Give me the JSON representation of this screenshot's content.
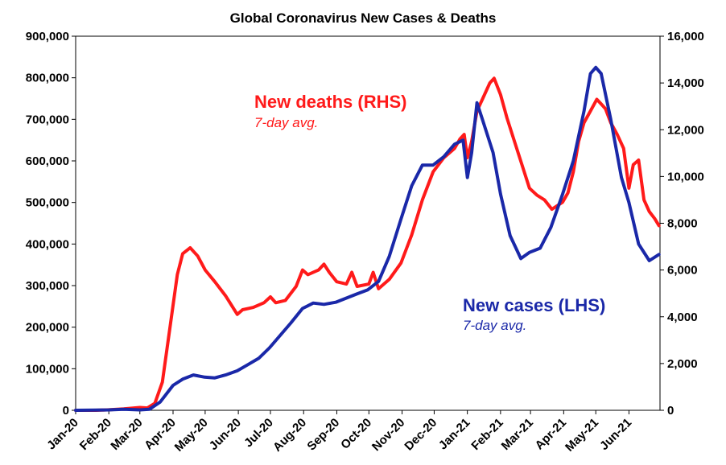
{
  "chart_data": {
    "type": "line",
    "title": "Global Coronavirus New Cases & Deaths",
    "xlabel": "",
    "ylabel": "",
    "x_ticks": [
      "Jan-20",
      "Feb-20",
      "Mar-20",
      "Apr-20",
      "May-20",
      "Jun-20",
      "Jul-20",
      "Aug-20",
      "Sep-20",
      "Oct-20",
      "Nov-20",
      "Dec-20",
      "Jan-21",
      "Feb-21",
      "Mar-21",
      "Apr-21",
      "May-21",
      "Jun-21"
    ],
    "y_left": {
      "min": 0,
      "max": 900000,
      "ticks": [
        "0",
        "100,000",
        "200,000",
        "300,000",
        "400,000",
        "500,000",
        "600,000",
        "700,000",
        "800,000",
        "900,000"
      ]
    },
    "y_right": {
      "min": 0,
      "max": 16000,
      "ticks": [
        "0",
        "2,000",
        "4,000",
        "6,000",
        "8,000",
        "10,000",
        "12,000",
        "14,000",
        "16,000"
      ]
    },
    "grid": false,
    "series": [
      {
        "name": "New deaths (RHS)",
        "subtitle": "7-day avg.",
        "axis": "right",
        "color": "#ff1a1a",
        "points": [
          [
            "2020-01-01",
            0
          ],
          [
            "2020-01-20",
            0
          ],
          [
            "2020-02-01",
            20
          ],
          [
            "2020-02-15",
            60
          ],
          [
            "2020-03-01",
            120
          ],
          [
            "2020-03-08",
            100
          ],
          [
            "2020-03-15",
            300
          ],
          [
            "2020-03-22",
            1200
          ],
          [
            "2020-03-29",
            3500
          ],
          [
            "2020-04-05",
            5800
          ],
          [
            "2020-04-10",
            6700
          ],
          [
            "2020-04-17",
            6950
          ],
          [
            "2020-04-24",
            6600
          ],
          [
            "2020-05-01",
            6000
          ],
          [
            "2020-05-10",
            5500
          ],
          [
            "2020-05-20",
            4900
          ],
          [
            "2020-05-31",
            4100
          ],
          [
            "2020-06-05",
            4300
          ],
          [
            "2020-06-15",
            4400
          ],
          [
            "2020-06-25",
            4600
          ],
          [
            "2020-07-01",
            4850
          ],
          [
            "2020-07-06",
            4600
          ],
          [
            "2020-07-15",
            4700
          ],
          [
            "2020-07-25",
            5300
          ],
          [
            "2020-07-31",
            6000
          ],
          [
            "2020-08-05",
            5800
          ],
          [
            "2020-08-15",
            6000
          ],
          [
            "2020-08-20",
            6250
          ],
          [
            "2020-08-25",
            5900
          ],
          [
            "2020-09-01",
            5500
          ],
          [
            "2020-09-10",
            5400
          ],
          [
            "2020-09-15",
            5900
          ],
          [
            "2020-09-20",
            5300
          ],
          [
            "2020-10-01",
            5400
          ],
          [
            "2020-10-05",
            5900
          ],
          [
            "2020-10-10",
            5200
          ],
          [
            "2020-10-20",
            5600
          ],
          [
            "2020-10-31",
            6300
          ],
          [
            "2020-11-10",
            7500
          ],
          [
            "2020-11-20",
            9000
          ],
          [
            "2020-11-30",
            10200
          ],
          [
            "2020-12-10",
            10800
          ],
          [
            "2020-12-20",
            11200
          ],
          [
            "2020-12-25",
            11600
          ],
          [
            "2020-12-29",
            11800
          ],
          [
            "2021-01-01",
            10800
          ],
          [
            "2021-01-05",
            11500
          ],
          [
            "2021-01-10",
            12800
          ],
          [
            "2021-01-15",
            13300
          ],
          [
            "2021-01-22",
            14000
          ],
          [
            "2021-01-26",
            14200
          ],
          [
            "2021-02-01",
            13500
          ],
          [
            "2021-02-07",
            12500
          ],
          [
            "2021-02-14",
            11500
          ],
          [
            "2021-02-21",
            10500
          ],
          [
            "2021-02-28",
            9500
          ],
          [
            "2021-03-07",
            9200
          ],
          [
            "2021-03-14",
            9000
          ],
          [
            "2021-03-21",
            8600
          ],
          [
            "2021-03-31",
            8900
          ],
          [
            "2021-04-05",
            9300
          ],
          [
            "2021-04-10",
            10200
          ],
          [
            "2021-04-15",
            11500
          ],
          [
            "2021-04-20",
            12300
          ],
          [
            "2021-04-26",
            12800
          ],
          [
            "2021-05-02",
            13300
          ],
          [
            "2021-05-06",
            13100
          ],
          [
            "2021-05-10",
            12900
          ],
          [
            "2021-05-15",
            12300
          ],
          [
            "2021-05-21",
            11800
          ],
          [
            "2021-05-27",
            11200
          ],
          [
            "2021-06-01",
            9500
          ],
          [
            "2021-06-05",
            10500
          ],
          [
            "2021-06-10",
            10700
          ],
          [
            "2021-06-15",
            9000
          ],
          [
            "2021-06-20",
            8500
          ],
          [
            "2021-06-25",
            8200
          ],
          [
            "2021-06-29",
            7900
          ]
        ]
      },
      {
        "name": "New cases (LHS)",
        "subtitle": "7-day avg.",
        "axis": "left",
        "color": "#1a28a8",
        "points": [
          [
            "2020-01-01",
            0
          ],
          [
            "2020-02-01",
            1000
          ],
          [
            "2020-02-15",
            2500
          ],
          [
            "2020-03-01",
            1000
          ],
          [
            "2020-03-10",
            2500
          ],
          [
            "2020-03-20",
            20000
          ],
          [
            "2020-04-01",
            60000
          ],
          [
            "2020-04-10",
            75000
          ],
          [
            "2020-04-20",
            85000
          ],
          [
            "2020-04-30",
            80000
          ],
          [
            "2020-05-10",
            78000
          ],
          [
            "2020-05-20",
            85000
          ],
          [
            "2020-05-31",
            95000
          ],
          [
            "2020-06-10",
            110000
          ],
          [
            "2020-06-20",
            125000
          ],
          [
            "2020-06-30",
            150000
          ],
          [
            "2020-07-10",
            180000
          ],
          [
            "2020-07-20",
            210000
          ],
          [
            "2020-07-31",
            245000
          ],
          [
            "2020-08-10",
            258000
          ],
          [
            "2020-08-20",
            255000
          ],
          [
            "2020-08-31",
            260000
          ],
          [
            "2020-09-10",
            270000
          ],
          [
            "2020-09-20",
            280000
          ],
          [
            "2020-09-30",
            290000
          ],
          [
            "2020-10-10",
            310000
          ],
          [
            "2020-10-20",
            370000
          ],
          [
            "2020-10-31",
            460000
          ],
          [
            "2020-11-10",
            540000
          ],
          [
            "2020-11-20",
            590000
          ],
          [
            "2020-11-30",
            590000
          ],
          [
            "2020-12-10",
            610000
          ],
          [
            "2020-12-20",
            640000
          ],
          [
            "2020-12-28",
            650000
          ],
          [
            "2021-01-01",
            560000
          ],
          [
            "2021-01-05",
            620000
          ],
          [
            "2021-01-10",
            740000
          ],
          [
            "2021-01-15",
            700000
          ],
          [
            "2021-01-25",
            620000
          ],
          [
            "2021-02-01",
            520000
          ],
          [
            "2021-02-10",
            420000
          ],
          [
            "2021-02-20",
            365000
          ],
          [
            "2021-02-28",
            380000
          ],
          [
            "2021-03-10",
            390000
          ],
          [
            "2021-03-20",
            440000
          ],
          [
            "2021-03-31",
            520000
          ],
          [
            "2021-04-10",
            600000
          ],
          [
            "2021-04-20",
            720000
          ],
          [
            "2021-04-26",
            810000
          ],
          [
            "2021-05-01",
            825000
          ],
          [
            "2021-05-06",
            810000
          ],
          [
            "2021-05-15",
            700000
          ],
          [
            "2021-05-25",
            560000
          ],
          [
            "2021-06-01",
            500000
          ],
          [
            "2021-06-10",
            400000
          ],
          [
            "2021-06-20",
            360000
          ],
          [
            "2021-06-29",
            375000
          ]
        ]
      }
    ]
  },
  "annotations": {
    "deaths_label": "New deaths (RHS)",
    "deaths_sub": "7-day avg.",
    "cases_label": "New cases (LHS)",
    "cases_sub": "7-day avg."
  }
}
